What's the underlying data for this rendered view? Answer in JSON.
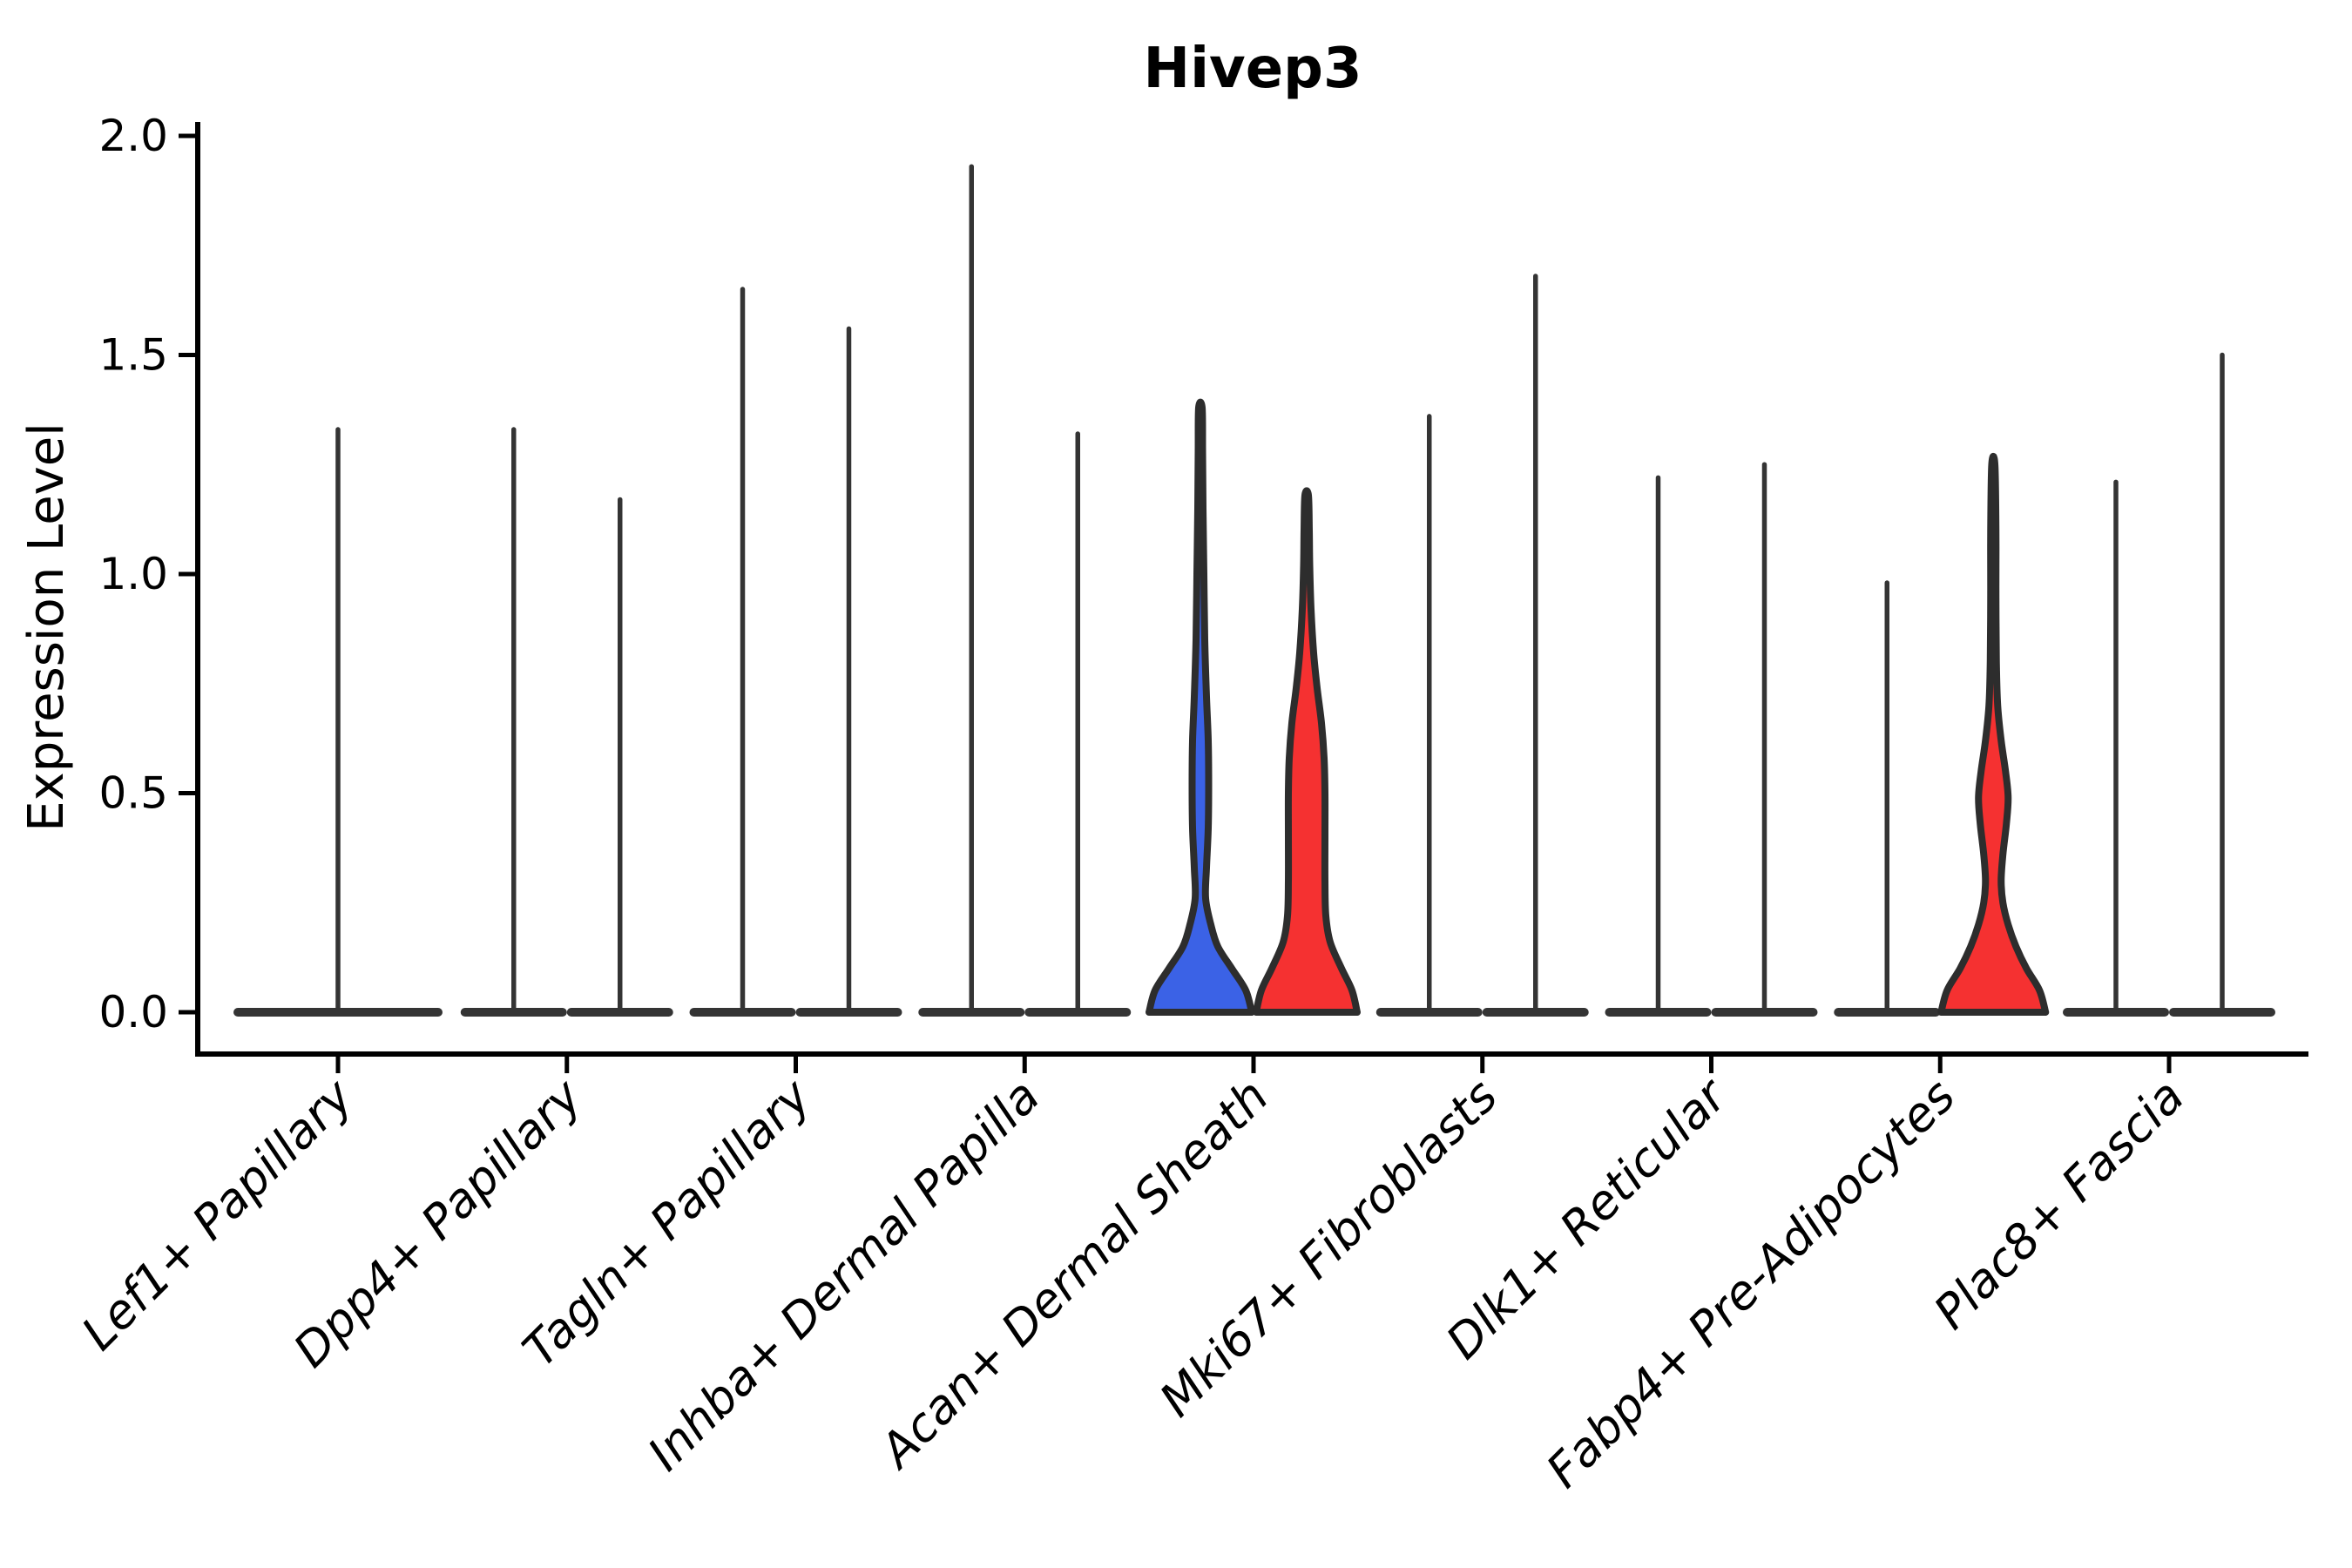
{
  "figure": {
    "title": "Hivep3",
    "ylabel": "Expression Level"
  },
  "colors": {
    "background": "#ffffff",
    "axis": "#000000",
    "violin_outline": "#2d2d2d",
    "spike": "#343434",
    "blue_fill": "#3b62e6",
    "red_fill": "#f53131"
  },
  "chart_data": {
    "type": "violin",
    "title": "Hivep3",
    "ylabel": "Expression Level",
    "xlabel": "",
    "ylim": [
      0,
      2.0
    ],
    "yticks": [
      "0.0",
      "0.5",
      "1.0",
      "1.5",
      "2.0"
    ],
    "ytick_values": [
      0,
      0.5,
      1.0,
      1.5,
      2.0
    ],
    "grid": false,
    "legend": "none",
    "categories": [
      "Lef1+ Papillary",
      "Dpp4+ Papillary",
      "Tagln+ Papillary",
      "Inhba+ Dermal Papilla",
      "Acan+ Dermal Sheath",
      "Mki67+ Fibroblasts",
      "Dlk1+ Reticular",
      "Fabp4+ Pre-Adipocytes",
      "Plac8+ Fascia"
    ],
    "violins": [
      {
        "category_index": 0,
        "category": "Lef1+ Papillary",
        "side": "center",
        "max_expression": 1.33,
        "style": "spike"
      },
      {
        "category_index": 1,
        "category": "Dpp4+ Papillary",
        "side": "left",
        "max_expression": 1.33,
        "style": "spike"
      },
      {
        "category_index": 1,
        "category": "Dpp4+ Papillary",
        "side": "right",
        "max_expression": 1.17,
        "style": "spike"
      },
      {
        "category_index": 2,
        "category": "Tagln+ Papillary",
        "side": "left",
        "max_expression": 1.65,
        "style": "spike"
      },
      {
        "category_index": 2,
        "category": "Tagln+ Papillary",
        "side": "right",
        "max_expression": 1.56,
        "style": "spike"
      },
      {
        "category_index": 3,
        "category": "Inhba+ Dermal Papilla",
        "side": "left",
        "max_expression": 1.93,
        "style": "spike"
      },
      {
        "category_index": 3,
        "category": "Inhba+ Dermal Papilla",
        "side": "right",
        "max_expression": 1.32,
        "style": "spike"
      },
      {
        "category_index": 4,
        "category": "Acan+ Dermal Sheath",
        "side": "left",
        "max_expression": 1.38,
        "style": "violin",
        "fill": "blue_fill",
        "profile": [
          [
            0,
            59
          ],
          [
            0.05,
            52
          ],
          [
            0.1,
            36
          ],
          [
            0.15,
            20
          ],
          [
            0.2,
            12
          ],
          [
            0.26,
            6
          ],
          [
            0.33,
            7
          ],
          [
            0.42,
            9
          ],
          [
            0.52,
            9.5
          ],
          [
            0.62,
            9
          ],
          [
            0.72,
            7
          ],
          [
            0.85,
            5
          ],
          [
            1.0,
            4
          ],
          [
            1.15,
            3
          ],
          [
            1.28,
            2.5
          ],
          [
            1.38,
            2
          ]
        ]
      },
      {
        "category_index": 4,
        "category": "Acan+ Dermal Sheath",
        "side": "right",
        "max_expression": 1.18,
        "style": "violin",
        "fill": "red_fill",
        "profile": [
          [
            0,
            58
          ],
          [
            0.05,
            52
          ],
          [
            0.1,
            40
          ],
          [
            0.16,
            27
          ],
          [
            0.22,
            22
          ],
          [
            0.3,
            21
          ],
          [
            0.4,
            21
          ],
          [
            0.5,
            21
          ],
          [
            0.58,
            20
          ],
          [
            0.66,
            17
          ],
          [
            0.74,
            12
          ],
          [
            0.82,
            8
          ],
          [
            0.92,
            5
          ],
          [
            1.02,
            3.5
          ],
          [
            1.1,
            3
          ],
          [
            1.18,
            2
          ]
        ]
      },
      {
        "category_index": 5,
        "category": "Mki67+ Fibroblasts",
        "side": "left",
        "max_expression": 1.36,
        "style": "spike"
      },
      {
        "category_index": 5,
        "category": "Mki67+ Fibroblasts",
        "side": "right",
        "max_expression": 1.68,
        "style": "spike"
      },
      {
        "category_index": 6,
        "category": "Dlk1+ Reticular",
        "side": "left",
        "max_expression": 1.22,
        "style": "spike"
      },
      {
        "category_index": 6,
        "category": "Dlk1+ Reticular",
        "side": "right",
        "max_expression": 1.25,
        "style": "spike"
      },
      {
        "category_index": 7,
        "category": "Fabp4+ Pre-Adipocytes",
        "side": "left",
        "max_expression": 0.98,
        "style": "spike"
      },
      {
        "category_index": 7,
        "category": "Fabp4+ Pre-Adipocytes",
        "side": "right",
        "max_expression": 1.25,
        "style": "violin",
        "fill": "red_fill",
        "profile": [
          [
            0,
            60
          ],
          [
            0.05,
            53
          ],
          [
            0.1,
            38
          ],
          [
            0.15,
            26
          ],
          [
            0.2,
            17
          ],
          [
            0.25,
            11
          ],
          [
            0.3,
            9
          ],
          [
            0.36,
            11
          ],
          [
            0.43,
            15
          ],
          [
            0.49,
            17
          ],
          [
            0.55,
            14
          ],
          [
            0.62,
            9
          ],
          [
            0.7,
            5
          ],
          [
            0.8,
            3.5
          ],
          [
            0.95,
            3
          ],
          [
            1.1,
            3
          ],
          [
            1.25,
            1.8
          ]
        ]
      },
      {
        "category_index": 8,
        "category": "Plac8+ Fascia",
        "side": "left",
        "max_expression": 1.21,
        "style": "spike"
      },
      {
        "category_index": 8,
        "category": "Plac8+ Fascia",
        "side": "right",
        "max_expression": 1.5,
        "style": "spike"
      }
    ]
  }
}
